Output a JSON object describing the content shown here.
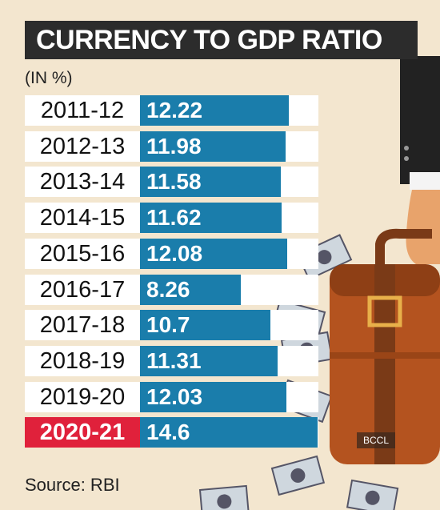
{
  "title": "CURRENCY TO GDP RATIO",
  "unit_label": "(IN %)",
  "source": "Source: RBI",
  "watermark": "BCCL",
  "colors": {
    "bar": "#1a7dab",
    "highlight": "#e0213b",
    "title_bg": "#2c2c2c",
    "background": "#f3e6cf"
  },
  "chart_data": {
    "type": "bar",
    "orientation": "horizontal",
    "title": "CURRENCY TO GDP RATIO",
    "unit": "(IN %)",
    "categories": [
      "2011-12",
      "2012-13",
      "2013-14",
      "2014-15",
      "2015-16",
      "2016-17",
      "2017-18",
      "2018-19",
      "2019-20",
      "2020-21"
    ],
    "values": [
      12.22,
      11.98,
      11.58,
      11.62,
      12.08,
      8.26,
      10.7,
      11.31,
      12.03,
      14.6
    ],
    "value_labels": [
      "12.22",
      "11.98",
      "11.58",
      "11.62",
      "12.08",
      "8.26",
      "10.7",
      "11.31",
      "12.03",
      "14.6"
    ],
    "highlighted_category": "2020-21",
    "xlim": [
      0,
      14.6
    ],
    "grid": false,
    "legend": "none"
  }
}
